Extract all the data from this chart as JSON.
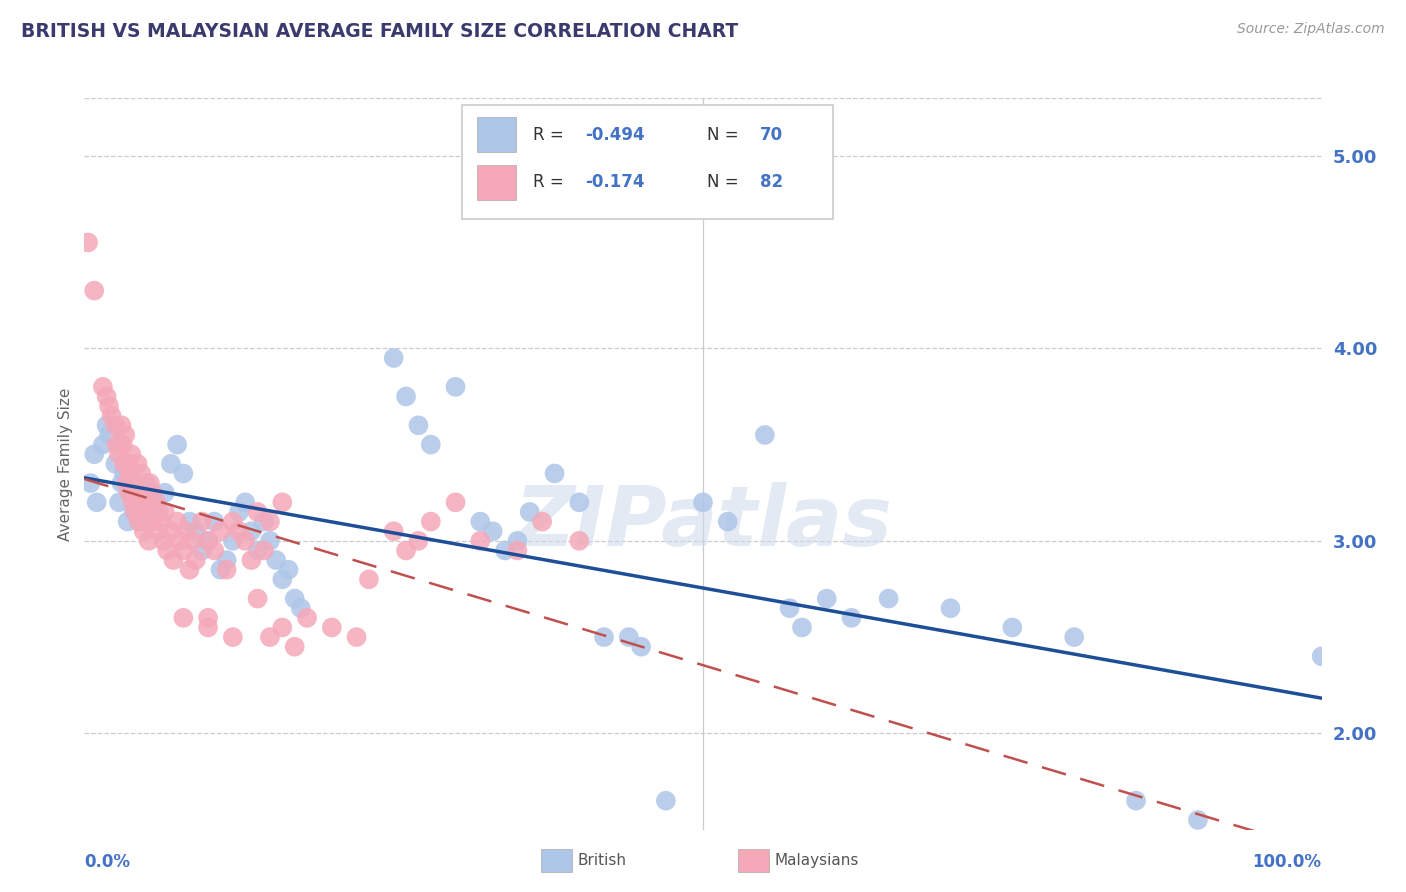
{
  "title": "BRITISH VS MALAYSIAN AVERAGE FAMILY SIZE CORRELATION CHART",
  "source": "Source: ZipAtlas.com",
  "ylabel": "Average Family Size",
  "ylim": [
    1.5,
    5.3
  ],
  "xlim": [
    0.0,
    1.0
  ],
  "yticks": [
    2.0,
    3.0,
    4.0,
    5.0
  ],
  "title_color": "#3a3a6e",
  "axis_color": "#4472c4",
  "watermark": "ZIPatlas",
  "british_color": "#aec6e8",
  "malaysian_color": "#f4a8b8",
  "british_line_color": "#1f4e99",
  "malaysian_line_color": "#c0504d",
  "british_scatter": [
    [
      0.005,
      3.3
    ],
    [
      0.008,
      3.45
    ],
    [
      0.01,
      3.2
    ],
    [
      0.015,
      3.5
    ],
    [
      0.018,
      3.6
    ],
    [
      0.02,
      3.55
    ],
    [
      0.025,
      3.4
    ],
    [
      0.028,
      3.2
    ],
    [
      0.03,
      3.3
    ],
    [
      0.032,
      3.35
    ],
    [
      0.035,
      3.1
    ],
    [
      0.038,
      3.25
    ],
    [
      0.04,
      3.15
    ],
    [
      0.045,
      3.1
    ],
    [
      0.05,
      3.3
    ],
    [
      0.055,
      3.2
    ],
    [
      0.06,
      3.15
    ],
    [
      0.065,
      3.25
    ],
    [
      0.07,
      3.4
    ],
    [
      0.075,
      3.5
    ],
    [
      0.08,
      3.35
    ],
    [
      0.085,
      3.1
    ],
    [
      0.09,
      3.05
    ],
    [
      0.095,
      2.95
    ],
    [
      0.1,
      3.0
    ],
    [
      0.105,
      3.1
    ],
    [
      0.11,
      2.85
    ],
    [
      0.115,
      2.9
    ],
    [
      0.12,
      3.0
    ],
    [
      0.125,
      3.15
    ],
    [
      0.13,
      3.2
    ],
    [
      0.135,
      3.05
    ],
    [
      0.14,
      2.95
    ],
    [
      0.145,
      3.1
    ],
    [
      0.15,
      3.0
    ],
    [
      0.155,
      2.9
    ],
    [
      0.16,
      2.8
    ],
    [
      0.165,
      2.85
    ],
    [
      0.17,
      2.7
    ],
    [
      0.175,
      2.65
    ],
    [
      0.25,
      3.95
    ],
    [
      0.26,
      3.75
    ],
    [
      0.27,
      3.6
    ],
    [
      0.28,
      3.5
    ],
    [
      0.3,
      3.8
    ],
    [
      0.32,
      3.1
    ],
    [
      0.33,
      3.05
    ],
    [
      0.34,
      2.95
    ],
    [
      0.35,
      3.0
    ],
    [
      0.36,
      3.15
    ],
    [
      0.38,
      3.35
    ],
    [
      0.4,
      3.2
    ],
    [
      0.42,
      2.5
    ],
    [
      0.44,
      2.5
    ],
    [
      0.45,
      2.45
    ],
    [
      0.47,
      1.65
    ],
    [
      0.5,
      3.2
    ],
    [
      0.52,
      3.1
    ],
    [
      0.55,
      3.55
    ],
    [
      0.57,
      2.65
    ],
    [
      0.58,
      2.55
    ],
    [
      0.6,
      2.7
    ],
    [
      0.62,
      2.6
    ],
    [
      0.65,
      2.7
    ],
    [
      0.7,
      2.65
    ],
    [
      0.75,
      2.55
    ],
    [
      0.8,
      2.5
    ],
    [
      0.85,
      1.65
    ],
    [
      0.9,
      1.55
    ],
    [
      1.0,
      2.4
    ]
  ],
  "malaysian_scatter": [
    [
      0.003,
      4.55
    ],
    [
      0.008,
      4.3
    ],
    [
      0.015,
      3.8
    ],
    [
      0.018,
      3.75
    ],
    [
      0.02,
      3.7
    ],
    [
      0.022,
      3.65
    ],
    [
      0.025,
      3.6
    ],
    [
      0.026,
      3.5
    ],
    [
      0.028,
      3.45
    ],
    [
      0.03,
      3.6
    ],
    [
      0.031,
      3.5
    ],
    [
      0.032,
      3.4
    ],
    [
      0.033,
      3.55
    ],
    [
      0.034,
      3.3
    ],
    [
      0.035,
      3.4
    ],
    [
      0.036,
      3.25
    ],
    [
      0.037,
      3.35
    ],
    [
      0.038,
      3.45
    ],
    [
      0.039,
      3.2
    ],
    [
      0.04,
      3.3
    ],
    [
      0.041,
      3.15
    ],
    [
      0.042,
      3.25
    ],
    [
      0.043,
      3.4
    ],
    [
      0.044,
      3.1
    ],
    [
      0.045,
      3.2
    ],
    [
      0.046,
      3.35
    ],
    [
      0.047,
      3.15
    ],
    [
      0.048,
      3.05
    ],
    [
      0.049,
      3.1
    ],
    [
      0.05,
      3.2
    ],
    [
      0.052,
      3.0
    ],
    [
      0.053,
      3.3
    ],
    [
      0.054,
      3.1
    ],
    [
      0.055,
      3.25
    ],
    [
      0.057,
      3.15
    ],
    [
      0.058,
      3.2
    ],
    [
      0.06,
      3.05
    ],
    [
      0.062,
      3.1
    ],
    [
      0.064,
      3.0
    ],
    [
      0.065,
      3.15
    ],
    [
      0.067,
      2.95
    ],
    [
      0.07,
      3.05
    ],
    [
      0.072,
      2.9
    ],
    [
      0.075,
      3.1
    ],
    [
      0.077,
      3.0
    ],
    [
      0.08,
      2.95
    ],
    [
      0.082,
      3.05
    ],
    [
      0.085,
      2.85
    ],
    [
      0.088,
      3.0
    ],
    [
      0.09,
      2.9
    ],
    [
      0.095,
      3.1
    ],
    [
      0.1,
      3.0
    ],
    [
      0.105,
      2.95
    ],
    [
      0.11,
      3.05
    ],
    [
      0.115,
      2.85
    ],
    [
      0.12,
      3.1
    ],
    [
      0.125,
      3.05
    ],
    [
      0.13,
      3.0
    ],
    [
      0.135,
      2.9
    ],
    [
      0.14,
      3.15
    ],
    [
      0.145,
      2.95
    ],
    [
      0.15,
      3.1
    ],
    [
      0.16,
      3.2
    ],
    [
      0.08,
      2.6
    ],
    [
      0.1,
      2.6
    ],
    [
      0.12,
      2.5
    ],
    [
      0.14,
      2.7
    ],
    [
      0.15,
      2.5
    ],
    [
      0.16,
      2.55
    ],
    [
      0.17,
      2.45
    ],
    [
      0.2,
      2.55
    ],
    [
      0.22,
      2.5
    ],
    [
      0.23,
      2.8
    ],
    [
      0.25,
      3.05
    ],
    [
      0.26,
      2.95
    ],
    [
      0.27,
      3.0
    ],
    [
      0.28,
      3.1
    ],
    [
      0.3,
      3.2
    ],
    [
      0.32,
      3.0
    ],
    [
      0.35,
      2.95
    ],
    [
      0.37,
      3.1
    ],
    [
      0.4,
      3.0
    ],
    [
      0.1,
      2.55
    ],
    [
      0.18,
      2.6
    ]
  ]
}
